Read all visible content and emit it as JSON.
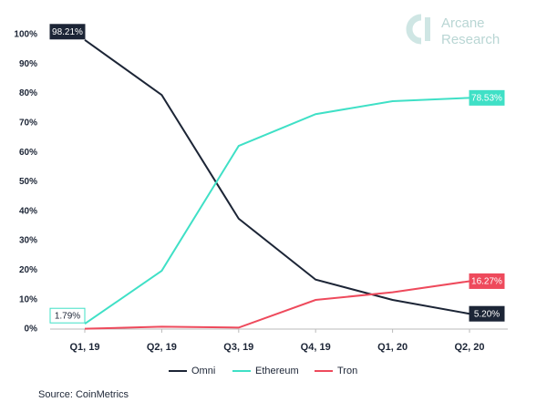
{
  "chart_data": {
    "type": "line",
    "categories": [
      "Q1, 19",
      "Q2, 19",
      "Q3, 19",
      "Q4, 19",
      "Q1, 20",
      "Q2, 20"
    ],
    "series": [
      {
        "name": "Omni",
        "color": "#1c2536",
        "values": [
          98.21,
          79.5,
          37.5,
          16.8,
          9.9,
          5.2
        ],
        "value_labels": [
          "98.21%",
          null,
          null,
          null,
          null,
          "5.20%"
        ]
      },
      {
        "name": "Ethereum",
        "color": "#3fe0c6",
        "values": [
          1.79,
          19.8,
          62.2,
          73.0,
          77.4,
          78.53
        ],
        "value_labels": [
          "1.79%",
          null,
          null,
          null,
          null,
          "78.53%"
        ]
      },
      {
        "name": "Tron",
        "color": "#ee4a5c",
        "values": [
          0.1,
          0.8,
          0.5,
          9.9,
          12.5,
          16.27
        ],
        "value_labels": [
          null,
          null,
          null,
          null,
          null,
          "16.27%"
        ]
      }
    ],
    "ylim": [
      0,
      100
    ],
    "yticks": [
      {
        "value": 0,
        "label": "0%"
      },
      {
        "value": 10,
        "label": "10%"
      },
      {
        "value": 20,
        "label": "20%"
      },
      {
        "value": 30,
        "label": "30%"
      },
      {
        "value": 40,
        "label": "40%"
      },
      {
        "value": 50,
        "label": "50%"
      },
      {
        "value": 60,
        "label": "60%"
      },
      {
        "value": 70,
        "label": "70%"
      },
      {
        "value": 80,
        "label": "80%"
      },
      {
        "value": 90,
        "label": "90%"
      },
      {
        "value": 100,
        "label": "100%"
      }
    ],
    "grid": false,
    "legend": "bottom",
    "logo": [
      "Arcane",
      "Research"
    ],
    "source": "Source: CoinMetrics"
  }
}
